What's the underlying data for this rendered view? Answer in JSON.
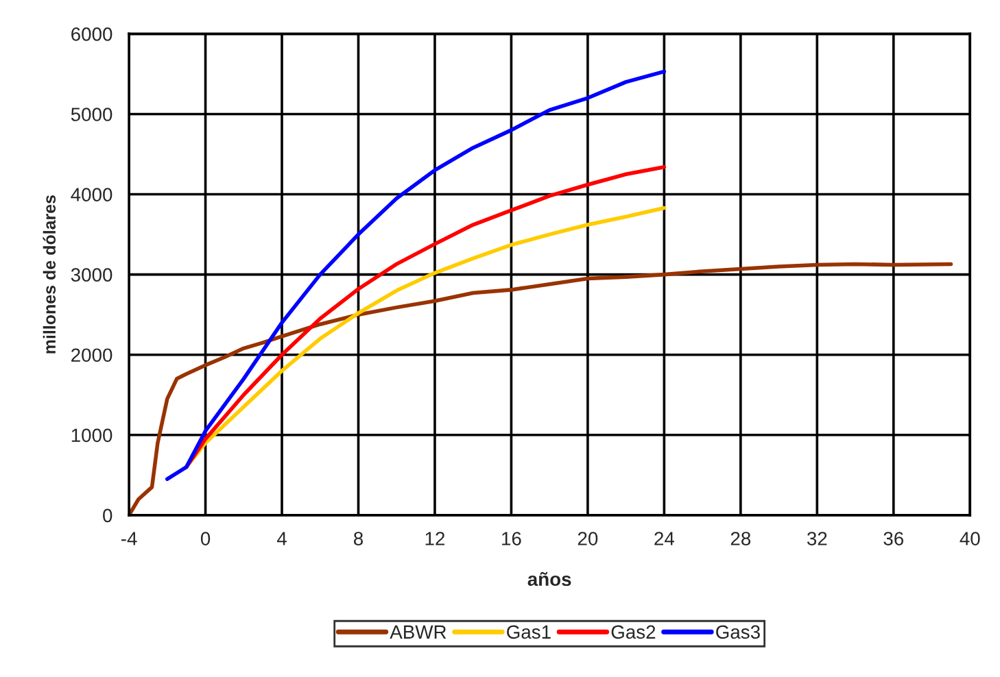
{
  "chart_data": {
    "type": "line",
    "xlabel": "años",
    "ylabel": "millones de dólares",
    "xlim": [
      -4,
      40
    ],
    "ylim": [
      0,
      6000
    ],
    "xticks": [
      -4,
      0,
      4,
      8,
      12,
      16,
      20,
      24,
      28,
      32,
      36,
      40
    ],
    "yticks": [
      0,
      1000,
      2000,
      3000,
      4000,
      5000,
      6000
    ],
    "grid": true,
    "legend": "bottom",
    "marker": "none",
    "line_style": "solid",
    "series": [
      {
        "name": "ABWR",
        "color": "#993300",
        "x": [
          -4,
          -3.5,
          -2.8,
          -2.5,
          -2,
          -1.5,
          -1,
          0,
          1,
          2,
          3,
          4,
          6,
          8,
          10,
          12,
          14,
          16,
          18,
          20,
          22,
          24,
          26,
          28,
          30,
          32,
          34,
          36,
          39
        ],
        "values": [
          0,
          200,
          350,
          900,
          1450,
          1700,
          1760,
          1870,
          1970,
          2080,
          2150,
          2230,
          2380,
          2500,
          2590,
          2670,
          2770,
          2810,
          2880,
          2950,
          2970,
          3000,
          3040,
          3070,
          3100,
          3120,
          3130,
          3120,
          3130
        ]
      },
      {
        "name": "Gas1",
        "color": "#ffcc00",
        "x": [
          -1,
          0,
          2,
          4,
          6,
          8,
          10,
          12,
          14,
          16,
          18,
          20,
          22,
          24
        ],
        "values": [
          600,
          900,
          1350,
          1800,
          2200,
          2520,
          2800,
          3020,
          3200,
          3370,
          3500,
          3620,
          3720,
          3830
        ]
      },
      {
        "name": "Gas2",
        "color": "#ff0000",
        "x": [
          -1,
          0,
          2,
          4,
          6,
          8,
          10,
          12,
          14,
          16,
          18,
          20,
          22,
          24
        ],
        "values": [
          600,
          950,
          1500,
          2000,
          2450,
          2820,
          3130,
          3380,
          3620,
          3800,
          3980,
          4120,
          4250,
          4340
        ]
      },
      {
        "name": "Gas3",
        "color": "#0000ff",
        "x": [
          -2,
          -1,
          0,
          2,
          4,
          6,
          8,
          10,
          12,
          14,
          16,
          18,
          20,
          22,
          24
        ],
        "values": [
          450,
          600,
          1050,
          1700,
          2400,
          3000,
          3500,
          3950,
          4300,
          4580,
          4800,
          5050,
          5200,
          5400,
          5530
        ]
      }
    ]
  }
}
